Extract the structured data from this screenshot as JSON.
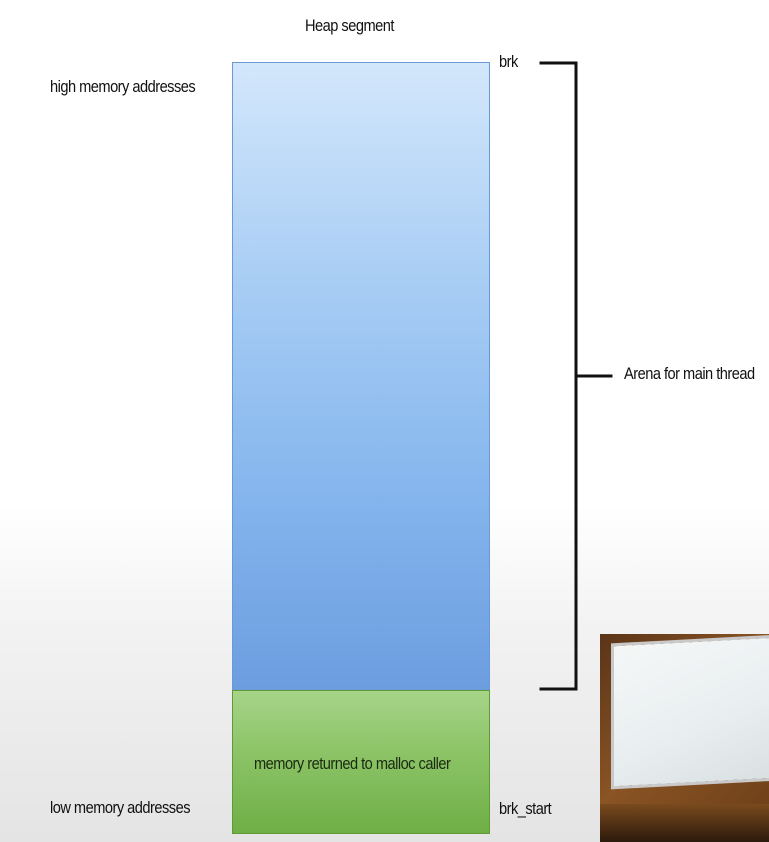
{
  "title": "Heap segment",
  "high_addresses": "high memory addresses",
  "low_addresses": "low memory addresses",
  "brk": "brk",
  "brk_start": "brk_start",
  "arena": "Arena for main thread",
  "malloc_block": "memory returned to malloc caller",
  "colors": {
    "heap_top": "#d3e7fb",
    "heap_bottom": "#6c9de0",
    "malloc_top": "#a6d488",
    "malloc_bottom": "#6faf46"
  }
}
